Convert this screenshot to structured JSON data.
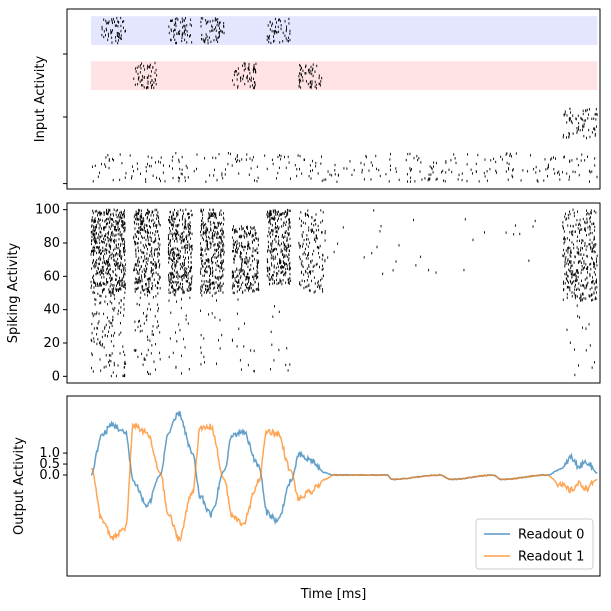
{
  "chart_data": [
    {
      "type": "scatter",
      "subtype": "raster",
      "ylabel": "Input Activity",
      "xlabel": "",
      "xlim": [
        0,
        1000
      ],
      "ylim": [
        0,
        100
      ],
      "yticks": [
        3,
        40,
        75
      ],
      "ytick_labels": [
        "",
        "",
        ""
      ],
      "bands": [
        {
          "name": "pattern-a-band",
          "y_range": [
            80,
            96
          ],
          "x_range": [
            45,
            995
          ],
          "color": "#e4e6ff"
        },
        {
          "name": "pattern-b-band",
          "y_range": [
            55,
            71
          ],
          "x_range": [
            45,
            995
          ],
          "color": "#ffe2e4"
        }
      ],
      "bursts": [
        {
          "band": "pattern-a",
          "x_range": [
            65,
            110
          ],
          "y_range": [
            81,
            95
          ],
          "count": 60
        },
        {
          "band": "pattern-a",
          "x_range": [
            190,
            235
          ],
          "y_range": [
            81,
            95
          ],
          "count": 60
        },
        {
          "band": "pattern-a",
          "x_range": [
            250,
            295
          ],
          "y_range": [
            81,
            95
          ],
          "count": 60
        },
        {
          "band": "pattern-a",
          "x_range": [
            375,
            420
          ],
          "y_range": [
            81,
            95
          ],
          "count": 50
        },
        {
          "band": "pattern-b",
          "x_range": [
            125,
            170
          ],
          "y_range": [
            56,
            70
          ],
          "count": 60
        },
        {
          "band": "pattern-b",
          "x_range": [
            310,
            355
          ],
          "y_range": [
            56,
            70
          ],
          "count": 60
        },
        {
          "band": "pattern-b",
          "x_range": [
            435,
            480
          ],
          "y_range": [
            56,
            70
          ],
          "count": 60
        },
        {
          "band": "cue",
          "x_range": [
            930,
            995
          ],
          "y_range": [
            28,
            45
          ],
          "count": 70
        },
        {
          "band": "background",
          "x_range": [
            45,
            995
          ],
          "y_range": [
            4,
            20
          ],
          "count": 330
        }
      ]
    },
    {
      "type": "scatter",
      "subtype": "raster",
      "ylabel": "Spiking Activity",
      "xlabel": "",
      "xlim": [
        0,
        1000
      ],
      "ylim": [
        -4,
        104
      ],
      "yticks": [
        0,
        20,
        40,
        60,
        80,
        100
      ],
      "ytick_labels": [
        "0",
        "20",
        "40",
        "60",
        "80",
        "100"
      ],
      "bursts": [
        {
          "x_range": [
            45,
            110
          ],
          "y_range": [
            50,
            100
          ],
          "count": 520
        },
        {
          "x_range": [
            45,
            110
          ],
          "y_range": [
            0,
            50
          ],
          "count": 120
        },
        {
          "x_range": [
            125,
            175
          ],
          "y_range": [
            50,
            100
          ],
          "count": 330
        },
        {
          "x_range": [
            125,
            175
          ],
          "y_range": [
            0,
            50
          ],
          "count": 60
        },
        {
          "x_range": [
            190,
            235
          ],
          "y_range": [
            50,
            100
          ],
          "count": 360
        },
        {
          "x_range": [
            190,
            235
          ],
          "y_range": [
            0,
            50
          ],
          "count": 25
        },
        {
          "x_range": [
            250,
            295
          ],
          "y_range": [
            50,
            100
          ],
          "count": 330
        },
        {
          "x_range": [
            250,
            295
          ],
          "y_range": [
            0,
            50
          ],
          "count": 20
        },
        {
          "x_range": [
            310,
            360
          ],
          "y_range": [
            50,
            90
          ],
          "count": 260
        },
        {
          "x_range": [
            310,
            360
          ],
          "y_range": [
            0,
            50
          ],
          "count": 15
        },
        {
          "x_range": [
            375,
            420
          ],
          "y_range": [
            55,
            100
          ],
          "count": 280
        },
        {
          "x_range": [
            375,
            420
          ],
          "y_range": [
            0,
            50
          ],
          "count": 12
        },
        {
          "x_range": [
            435,
            485
          ],
          "y_range": [
            50,
            100
          ],
          "count": 150
        },
        {
          "x_range": [
            485,
            900
          ],
          "y_range": [
            60,
            100
          ],
          "count": 30
        },
        {
          "x_range": [
            930,
            995
          ],
          "y_range": [
            45,
            100
          ],
          "count": 330
        },
        {
          "x_range": [
            930,
            995
          ],
          "y_range": [
            0,
            45
          ],
          "count": 15
        }
      ]
    },
    {
      "type": "line",
      "ylabel": "Output Activity",
      "xlabel": "Time [ms]",
      "xlim": [
        0,
        1000
      ],
      "ylim": [
        -4.6,
        3.6
      ],
      "yticks": [
        1.0,
        0.5,
        0.0
      ],
      "ytick_labels": [
        "1.0",
        "0.5",
        "0.0"
      ],
      "legend": "lower-right",
      "series": [
        {
          "name": "Readout 0",
          "color": "#1f77b4",
          "x": [
            45,
            65,
            85,
            110,
            125,
            150,
            175,
            190,
            210,
            235,
            250,
            270,
            295,
            310,
            330,
            360,
            375,
            395,
            420,
            435,
            455,
            485,
            500,
            600,
            610,
            700,
            720,
            800,
            815,
            900,
            930,
            945,
            960,
            975,
            995
          ],
          "y": [
            0.0,
            1.8,
            2.3,
            1.9,
            -0.3,
            -1.4,
            0.0,
            1.9,
            2.8,
            1.0,
            -1.0,
            -1.8,
            0.2,
            1.8,
            2.0,
            0.4,
            -1.7,
            -2.1,
            -0.3,
            0.9,
            0.7,
            0.1,
            0.0,
            0.0,
            -0.2,
            0.0,
            -0.2,
            0.0,
            -0.2,
            0.0,
            0.3,
            0.8,
            0.4,
            0.6,
            0.1
          ]
        },
        {
          "name": "Readout 1",
          "color": "#ff7f0e",
          "x": [
            45,
            65,
            85,
            110,
            125,
            150,
            175,
            190,
            210,
            235,
            250,
            270,
            295,
            310,
            330,
            360,
            375,
            395,
            420,
            435,
            455,
            485,
            500,
            600,
            610,
            700,
            720,
            800,
            815,
            900,
            930,
            945,
            960,
            975,
            995
          ],
          "y": [
            0.4,
            -2.0,
            -2.9,
            -2.4,
            2.3,
            1.9,
            0.1,
            -1.8,
            -2.9,
            -0.8,
            2.1,
            2.2,
            -0.2,
            -1.9,
            -2.2,
            -0.3,
            2.0,
            1.9,
            0.2,
            -1.1,
            -0.8,
            -0.2,
            0.0,
            0.0,
            -0.2,
            0.0,
            -0.2,
            0.0,
            -0.2,
            0.0,
            -0.5,
            -0.7,
            -0.4,
            -0.6,
            -0.2
          ]
        }
      ]
    }
  ]
}
